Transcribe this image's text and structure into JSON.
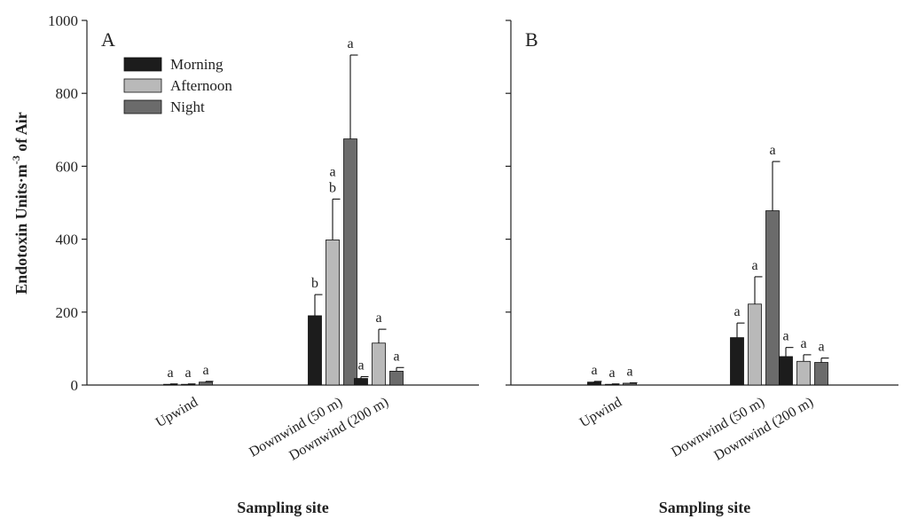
{
  "figure": {
    "ylabel": "Endotoxin Units·m⁻³ of Air",
    "ylabel_main": "Endotoxin Units·m",
    "ylabel_exp": "-3",
    "ylabel_rest": " of Air"
  },
  "chart_data": [
    {
      "type": "bar",
      "panel": "A",
      "categories": [
        "Upwind",
        "Downwind (50 m)",
        "Downwind (200 m)"
      ],
      "xlabel": "Sampling site",
      "ylabel": "Endotoxin Units·m⁻³ of Air",
      "ylim": [
        0,
        1000
      ],
      "yticks": [
        0,
        200,
        400,
        600,
        800,
        1000
      ],
      "legend": {
        "placement": "top-left"
      },
      "series": [
        {
          "name": "Morning",
          "color": "#1c1c1c",
          "values": [
            2,
            190,
            18
          ],
          "errors": [
            1,
            58,
            5
          ],
          "letters": [
            "a",
            "b",
            "a"
          ]
        },
        {
          "name": "Afternoon",
          "color": "#b9b9b9",
          "values": [
            2,
            398,
            115
          ],
          "errors": [
            1,
            112,
            38
          ],
          "letters": [
            "a",
            "a\nb",
            "a"
          ]
        },
        {
          "name": "Night",
          "color": "#6b6b6b",
          "values": [
            8,
            675,
            38
          ],
          "errors": [
            2,
            230,
            10
          ],
          "letters": [
            "a",
            "a",
            "a"
          ]
        }
      ]
    },
    {
      "type": "bar",
      "panel": "B",
      "categories": [
        "Upwind",
        "Downwind (50 m)",
        "Downwind (200 m)"
      ],
      "xlabel": "Sampling site",
      "ylim": [
        0,
        1000
      ],
      "yticks": [
        0,
        200,
        400,
        600,
        800,
        1000
      ],
      "series": [
        {
          "name": "Morning",
          "color": "#1c1c1c",
          "values": [
            8,
            130,
            78
          ],
          "errors": [
            2,
            40,
            25
          ],
          "letters": [
            "a",
            "a",
            "a"
          ]
        },
        {
          "name": "Afternoon",
          "color": "#b9b9b9",
          "values": [
            2,
            222,
            65
          ],
          "errors": [
            1,
            75,
            18
          ],
          "letters": [
            "a",
            "a",
            "a"
          ]
        },
        {
          "name": "Night",
          "color": "#6b6b6b",
          "values": [
            5,
            478,
            62
          ],
          "errors": [
            1,
            135,
            12
          ],
          "letters": [
            "a",
            "a",
            "a"
          ]
        }
      ]
    }
  ]
}
